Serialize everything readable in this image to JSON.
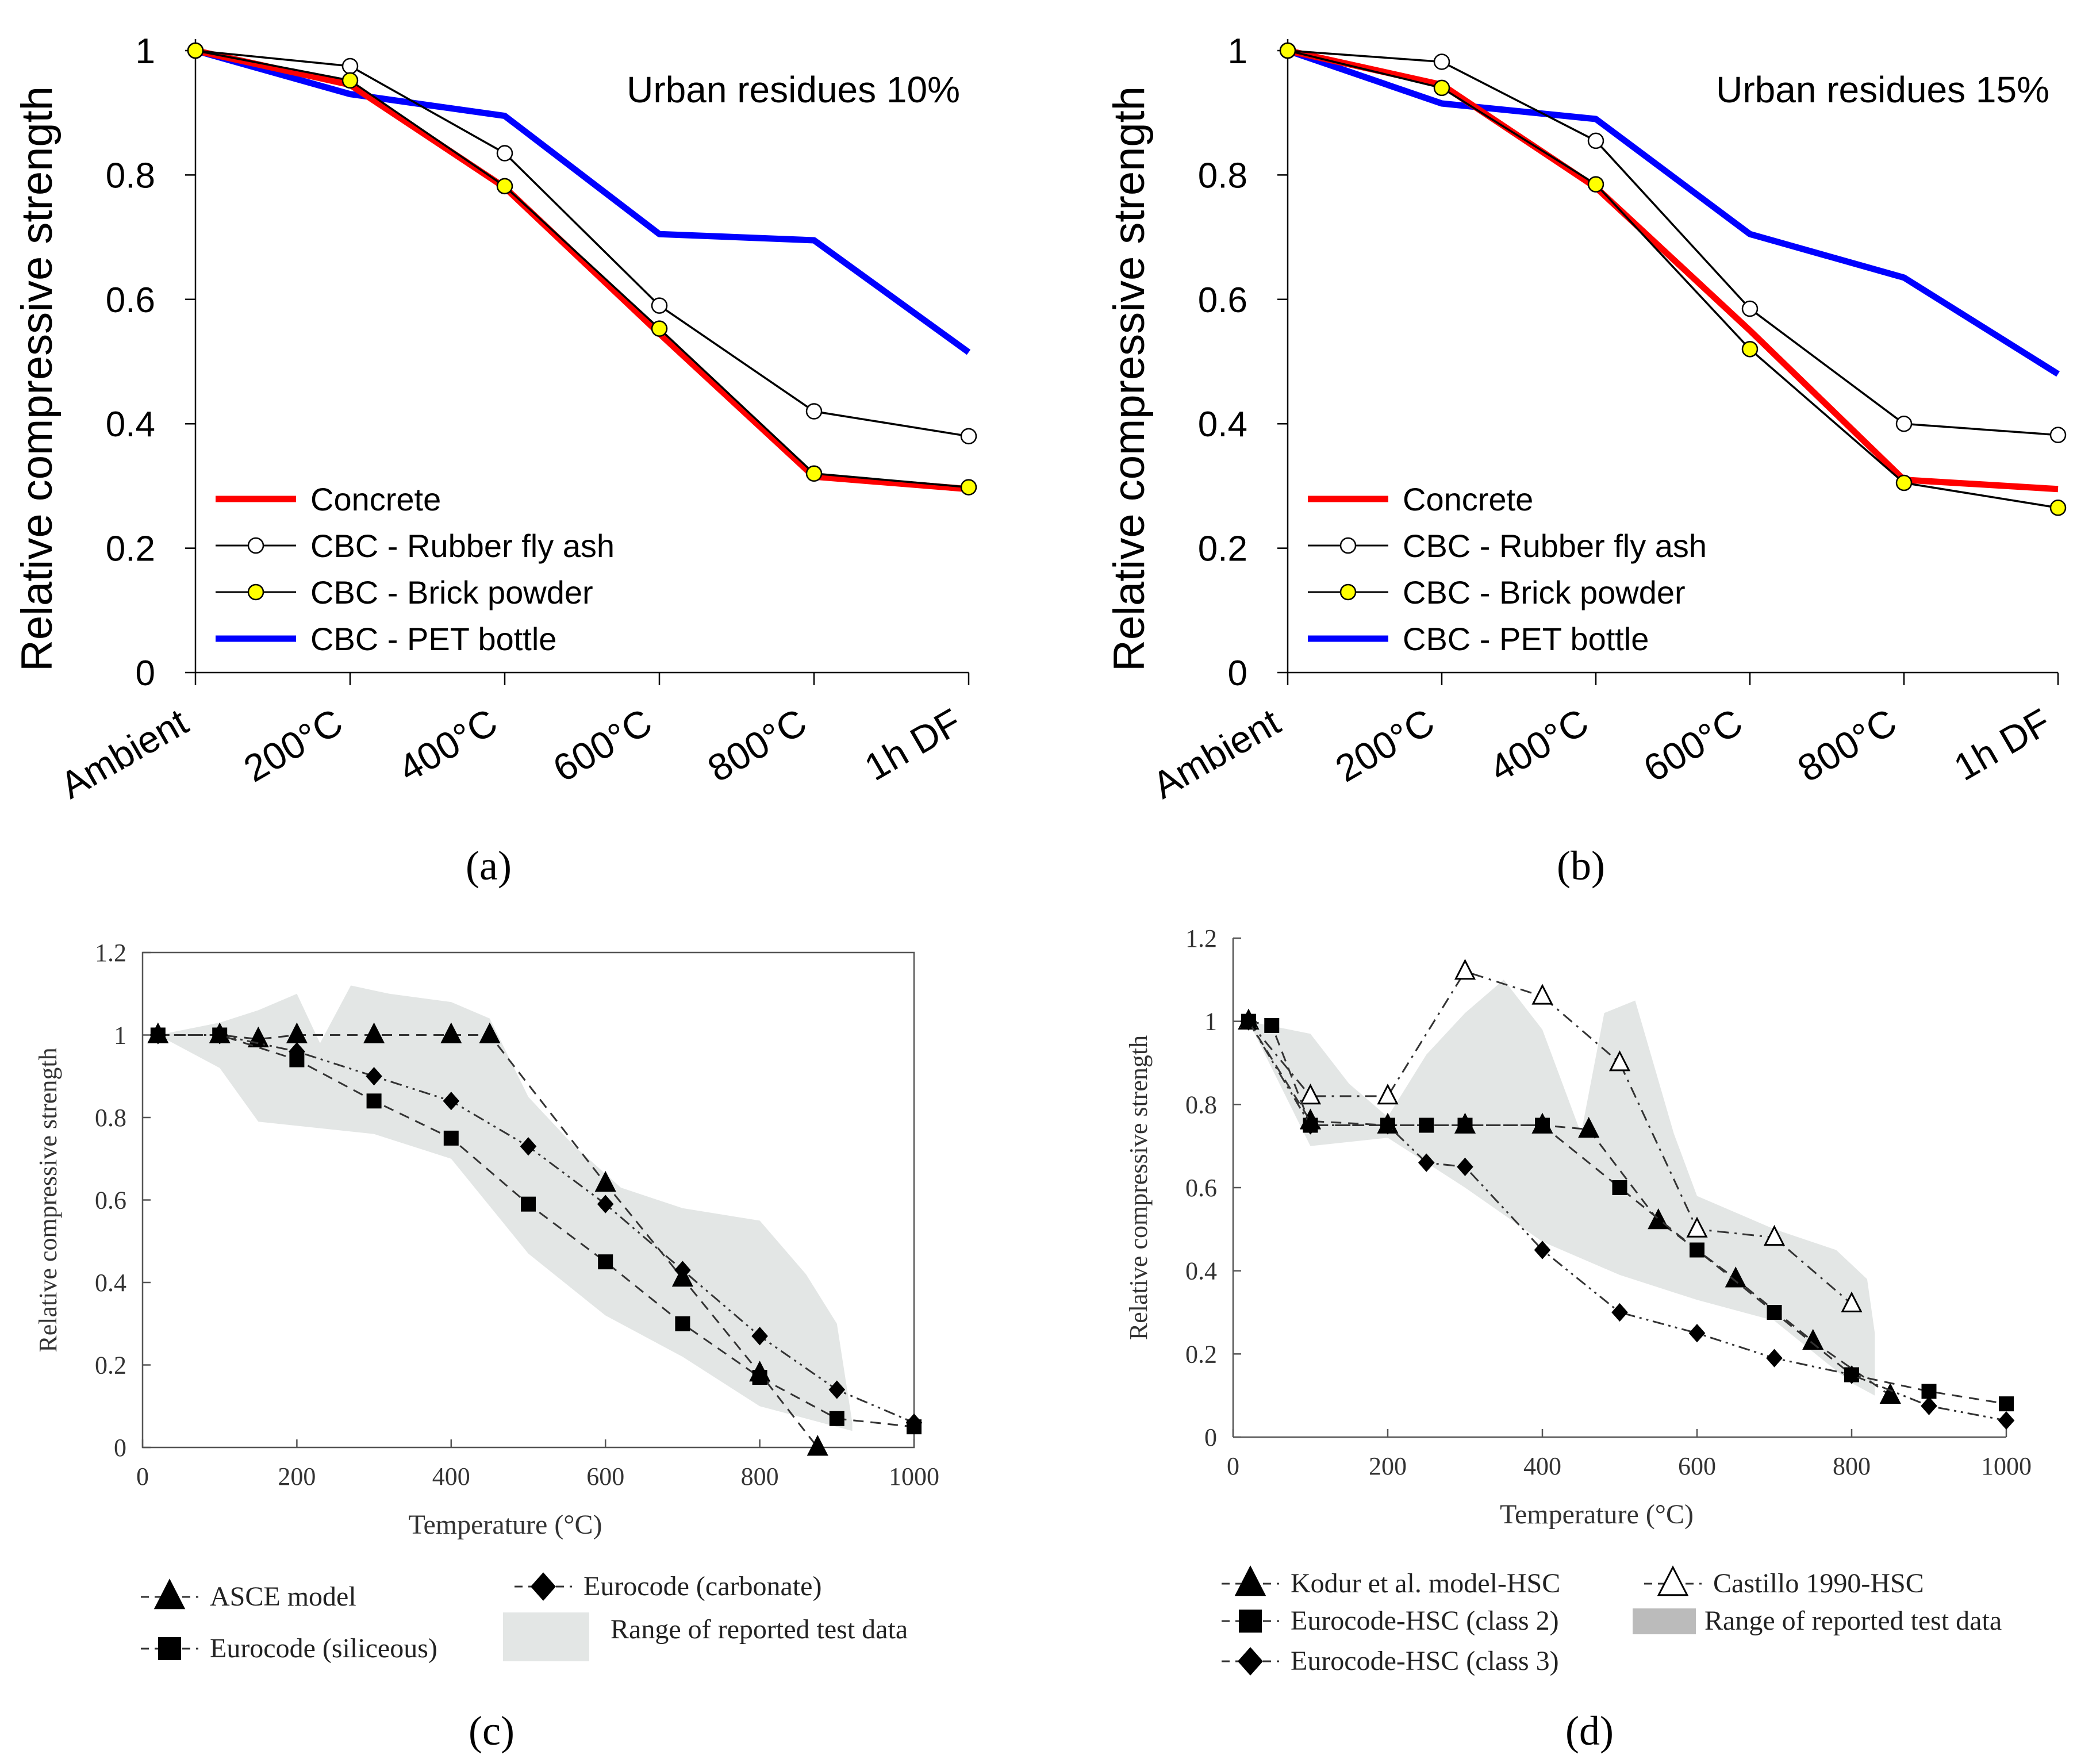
{
  "figure_labels": [
    "(a)",
    "(b)",
    "(c)",
    "(d)"
  ],
  "chart_data": [
    {
      "id": "a",
      "type": "line",
      "annotation": "Urban residues 10%",
      "ylabel": "Relative compressive strength",
      "xlabel": "",
      "categories": [
        "Ambient",
        "200°C",
        "400°C",
        "600°C",
        "800°C",
        "1h DF"
      ],
      "ylim": [
        0,
        1
      ],
      "yticks": [
        "0",
        "0.2",
        "0.4",
        "0.6",
        "0.8",
        "1"
      ],
      "legend_position": "bottom-left",
      "series": [
        {
          "name": "Concrete",
          "color": "#ff0000",
          "marker": "none",
          "values": [
            1.0,
            0.945,
            0.78,
            0.545,
            0.315,
            0.295
          ]
        },
        {
          "name": "CBC - Rubber fly ash",
          "color": "#000000",
          "marker": "open-circle",
          "values": [
            1.0,
            0.975,
            0.835,
            0.59,
            0.42,
            0.38
          ]
        },
        {
          "name": "CBC - Brick powder",
          "color": "#000000",
          "marker": "yellow-circle",
          "values": [
            1.0,
            0.952,
            0.782,
            0.553,
            0.32,
            0.298
          ]
        },
        {
          "name": "CBC - PET bottle",
          "color": "#0000ff",
          "marker": "none",
          "values": [
            1.0,
            0.93,
            0.895,
            0.705,
            0.695,
            0.515
          ]
        }
      ]
    },
    {
      "id": "b",
      "type": "line",
      "annotation": "Urban residues 15%",
      "ylabel": "Relative compressive strength",
      "xlabel": "",
      "categories": [
        "Ambient",
        "200°C",
        "400°C",
        "600°C",
        "800°C",
        "1h DF"
      ],
      "ylim": [
        0,
        1
      ],
      "yticks": [
        "0",
        "0.2",
        "0.4",
        "0.6",
        "0.8",
        "1"
      ],
      "legend_position": "bottom-left",
      "series": [
        {
          "name": "Concrete",
          "color": "#ff0000",
          "marker": "none",
          "values": [
            1.0,
            0.945,
            0.78,
            0.55,
            0.31,
            0.295
          ]
        },
        {
          "name": "CBC - Rubber fly ash",
          "color": "#000000",
          "marker": "open-circle",
          "values": [
            1.0,
            0.982,
            0.855,
            0.585,
            0.4,
            0.382
          ]
        },
        {
          "name": "CBC - Brick powder",
          "color": "#000000",
          "marker": "yellow-circle",
          "values": [
            1.0,
            0.94,
            0.785,
            0.52,
            0.305,
            0.265
          ]
        },
        {
          "name": "CBC - PET bottle",
          "color": "#0000ff",
          "marker": "none",
          "values": [
            1.0,
            0.915,
            0.89,
            0.705,
            0.635,
            0.48
          ]
        }
      ]
    },
    {
      "id": "c",
      "type": "line",
      "xlabel": "Temperature (°C)",
      "ylabel": "Relative compressive strength",
      "xlim": [
        0,
        1000
      ],
      "ylim": [
        0,
        1.2
      ],
      "xticks": [
        "0",
        "200",
        "400",
        "600",
        "800",
        "1000"
      ],
      "yticks": [
        "0",
        "0.2",
        "0.4",
        "0.6",
        "0.8",
        "1",
        "1.2"
      ],
      "legend_position": "bottom",
      "range_band": {
        "name": "Range of reported test data",
        "upper": [
          [
            20,
            1.0
          ],
          [
            100,
            1.03
          ],
          [
            150,
            1.06
          ],
          [
            200,
            1.1
          ],
          [
            230,
            0.98
          ],
          [
            270,
            1.12
          ],
          [
            320,
            1.1
          ],
          [
            400,
            1.08
          ],
          [
            450,
            1.04
          ],
          [
            500,
            0.85
          ],
          [
            560,
            0.73
          ],
          [
            620,
            0.63
          ],
          [
            700,
            0.58
          ],
          [
            800,
            0.55
          ],
          [
            860,
            0.42
          ],
          [
            900,
            0.3
          ],
          [
            920,
            0.06
          ]
        ],
        "lower": [
          [
            20,
            1.0
          ],
          [
            100,
            0.92
          ],
          [
            150,
            0.79
          ],
          [
            300,
            0.76
          ],
          [
            400,
            0.7
          ],
          [
            500,
            0.47
          ],
          [
            600,
            0.32
          ],
          [
            700,
            0.22
          ],
          [
            800,
            0.1
          ],
          [
            900,
            0.05
          ],
          [
            920,
            0.04
          ]
        ]
      },
      "series": [
        {
          "name": "ASCE model",
          "marker": "triangle",
          "x": [
            20,
            100,
            150,
            200,
            300,
            400,
            450,
            600,
            700,
            800,
            875
          ],
          "y": [
            1.0,
            1.0,
            0.99,
            1.0,
            1.0,
            1.0,
            1.0,
            0.64,
            0.41,
            0.18,
            0.0
          ]
        },
        {
          "name": "Eurocode (siliceous)",
          "marker": "square",
          "x": [
            20,
            100,
            200,
            300,
            400,
            500,
            600,
            700,
            800,
            900,
            1000
          ],
          "y": [
            1.0,
            1.0,
            0.94,
            0.84,
            0.75,
            0.59,
            0.45,
            0.3,
            0.17,
            0.07,
            0.05
          ]
        },
        {
          "name": "Eurocode (carbonate)",
          "marker": "diamond",
          "x": [
            20,
            100,
            200,
            300,
            400,
            500,
            600,
            700,
            800,
            900,
            1000
          ],
          "y": [
            1.0,
            1.0,
            0.96,
            0.9,
            0.84,
            0.73,
            0.59,
            0.43,
            0.27,
            0.14,
            0.06
          ]
        }
      ]
    },
    {
      "id": "d",
      "type": "line",
      "xlabel": "Temperature (°C)",
      "ylabel": "Relative compressive strength",
      "xlim": [
        0,
        1000
      ],
      "ylim": [
        0,
        1.2
      ],
      "xticks": [
        "0",
        "200",
        "400",
        "600",
        "800",
        "1000"
      ],
      "yticks": [
        "0",
        "0.2",
        "0.4",
        "0.6",
        "0.8",
        "1",
        "1.2"
      ],
      "legend_position": "bottom",
      "range_band": {
        "name": "Range of reported test data",
        "upper": [
          [
            20,
            1.0
          ],
          [
            100,
            0.97
          ],
          [
            150,
            0.85
          ],
          [
            200,
            0.77
          ],
          [
            250,
            0.92
          ],
          [
            300,
            1.02
          ],
          [
            350,
            1.1
          ],
          [
            400,
            0.98
          ],
          [
            450,
            0.73
          ],
          [
            480,
            1.02
          ],
          [
            520,
            1.05
          ],
          [
            570,
            0.73
          ],
          [
            600,
            0.58
          ],
          [
            700,
            0.5
          ],
          [
            780,
            0.45
          ],
          [
            820,
            0.38
          ],
          [
            830,
            0.25
          ],
          [
            830,
            0.1
          ]
        ],
        "lower": [
          [
            20,
            1.0
          ],
          [
            100,
            0.7
          ],
          [
            200,
            0.72
          ],
          [
            300,
            0.6
          ],
          [
            400,
            0.47
          ],
          [
            500,
            0.39
          ],
          [
            600,
            0.33
          ],
          [
            700,
            0.28
          ],
          [
            800,
            0.13
          ],
          [
            830,
            0.1
          ]
        ]
      },
      "series": [
        {
          "name": "Kodur et al. model-HSC",
          "marker": "triangle",
          "x": [
            20,
            100,
            200,
            300,
            400,
            460,
            550,
            650,
            750,
            850
          ],
          "y": [
            1.0,
            0.76,
            0.75,
            0.75,
            0.75,
            0.74,
            0.52,
            0.38,
            0.23,
            0.1
          ]
        },
        {
          "name": "Castillo 1990-HSC",
          "marker": "open-triangle",
          "x": [
            20,
            100,
            200,
            300,
            400,
            500,
            600,
            700,
            800
          ],
          "y": [
            1.0,
            0.82,
            0.82,
            1.12,
            1.06,
            0.9,
            0.5,
            0.48,
            0.32
          ]
        },
        {
          "name": "Eurocode-HSC (class 2)",
          "marker": "square",
          "x": [
            20,
            50,
            100,
            200,
            250,
            300,
            400,
            500,
            600,
            700,
            800,
            900,
            1000
          ],
          "y": [
            1.0,
            0.99,
            0.75,
            0.75,
            0.75,
            0.75,
            0.75,
            0.6,
            0.45,
            0.3,
            0.15,
            0.11,
            0.08
          ]
        },
        {
          "name": "Eurocode-HSC (class 3)",
          "marker": "diamond",
          "x": [
            20,
            100,
            200,
            250,
            300,
            400,
            500,
            600,
            700,
            800,
            900,
            1000
          ],
          "y": [
            1.0,
            0.75,
            0.75,
            0.66,
            0.65,
            0.45,
            0.3,
            0.25,
            0.19,
            0.15,
            0.075,
            0.04
          ]
        }
      ]
    }
  ]
}
